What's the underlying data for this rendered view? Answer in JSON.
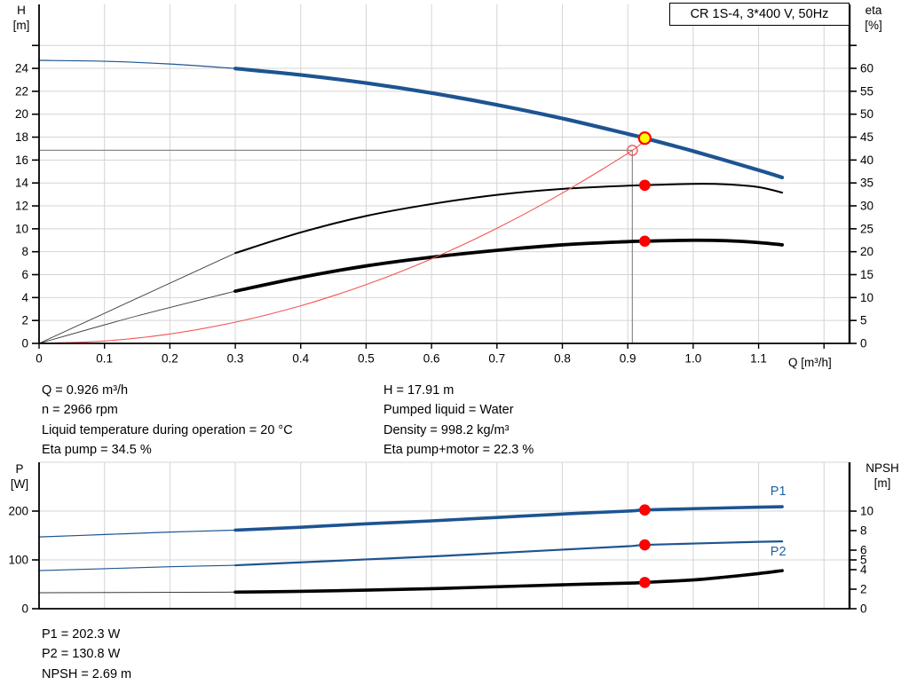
{
  "colors": {
    "blue": "#1d5491",
    "label_blue": "#1f5fa8",
    "black": "#000000",
    "lead_gray": "#3a3a3a",
    "red": "#ff0000",
    "system_red": "#f25555",
    "yellow": "#ffff00",
    "grid": "#d4d4d4",
    "guide": "#8a8a8a",
    "axis": "#000000"
  },
  "info_top": {
    "left": [
      "Q = 0.926 m³/h",
      "n = 2966 rpm",
      "Liquid temperature during operation = 20 °C",
      "Eta pump = 34.5 %"
    ],
    "right": [
      "H = 17.91 m",
      "Pumped liquid = Water",
      "Density = 998.2 kg/m³",
      "Eta pump+motor = 22.3 %"
    ]
  },
  "info_bottom": [
    "P1 = 202.3 W",
    "P2 = 130.8 W",
    "NPSH = 2.69 m"
  ],
  "chart_data": [
    {
      "type": "line",
      "title": "CR 1S-4, 3*400 V, 50Hz",
      "xlabel": "Q [m³/h]",
      "xlim": [
        0,
        1.239
      ],
      "x_ticks": [
        {
          "v": 0,
          "label": "0"
        },
        {
          "v": 0.1,
          "label": "0.1"
        },
        {
          "v": 0.2,
          "label": "0.2"
        },
        {
          "v": 0.3,
          "label": "0.3"
        },
        {
          "v": 0.4,
          "label": "0.4"
        },
        {
          "v": 0.5,
          "label": "0.5"
        },
        {
          "v": 0.6,
          "label": "0.6"
        },
        {
          "v": 0.7,
          "label": "0.7"
        },
        {
          "v": 0.8,
          "label": "0.8"
        },
        {
          "v": 0.9,
          "label": "0.9"
        },
        {
          "v": 1.0,
          "label": "1.0"
        },
        {
          "v": 1.1,
          "label": "1.1"
        },
        {
          "v": 1.2
        }
      ],
      "x_grid": [
        0.1,
        0.2,
        0.3,
        0.4,
        0.5,
        0.6,
        0.7,
        0.8,
        0.9,
        1.0,
        1.1,
        1.2
      ],
      "left_axis": {
        "label_top": "H",
        "label_unit": "[m]",
        "lim": [
          0,
          29.58
        ],
        "ticks": [
          {
            "v": 0,
            "label": "0"
          },
          {
            "v": 2,
            "label": "2"
          },
          {
            "v": 4,
            "label": "4"
          },
          {
            "v": 6,
            "label": "6"
          },
          {
            "v": 8,
            "label": "8"
          },
          {
            "v": 10,
            "label": "10"
          },
          {
            "v": 12,
            "label": "12"
          },
          {
            "v": 14,
            "label": "14"
          },
          {
            "v": 16,
            "label": "16"
          },
          {
            "v": 18,
            "label": "18"
          },
          {
            "v": 20,
            "label": "20"
          },
          {
            "v": 22,
            "label": "22"
          },
          {
            "v": 24,
            "label": "24"
          },
          {
            "v": 26
          }
        ],
        "grid_values": [
          2,
          4,
          6,
          8,
          10,
          12,
          14,
          16,
          18,
          20,
          22,
          24,
          26
        ]
      },
      "right_axis": {
        "label_top": "eta",
        "label_unit": "[%]",
        "lim": [
          0,
          73.94
        ],
        "ticks": [
          {
            "v": 0,
            "label": "0"
          },
          {
            "v": 5,
            "label": "5"
          },
          {
            "v": 10,
            "label": "10"
          },
          {
            "v": 15,
            "label": "15"
          },
          {
            "v": 20,
            "label": "20"
          },
          {
            "v": 25,
            "label": "25"
          },
          {
            "v": 30,
            "label": "30"
          },
          {
            "v": 35,
            "label": "35"
          },
          {
            "v": 40,
            "label": "40"
          },
          {
            "v": 45,
            "label": "45"
          },
          {
            "v": 50,
            "label": "50"
          },
          {
            "v": 55,
            "label": "55"
          },
          {
            "v": 60,
            "label": "60"
          },
          {
            "v": 65
          }
        ]
      },
      "guides": {
        "h": {
          "v": 16.85,
          "q_end": 0.907
        },
        "v": {
          "q": 0.907,
          "v_end": 16.85
        }
      },
      "series": [
        {
          "name": "qh-curve-lead",
          "axis": "left",
          "color": "blue",
          "width": 1.2,
          "points": [
            [
              0,
              24.7
            ],
            [
              0.1,
              24.62
            ],
            [
              0.2,
              24.38
            ],
            [
              0.3,
              23.99
            ]
          ]
        },
        {
          "name": "qh-curve",
          "axis": "left",
          "color": "blue",
          "width": 4.2,
          "points": [
            [
              0.3,
              23.99
            ],
            [
              0.4,
              23.43
            ],
            [
              0.5,
              22.72
            ],
            [
              0.6,
              21.85
            ],
            [
              0.7,
              20.82
            ],
            [
              0.8,
              19.63
            ],
            [
              0.9,
              18.28
            ],
            [
              0.926,
              17.91
            ],
            [
              1.0,
              16.78
            ],
            [
              1.1,
              15.12
            ],
            [
              1.136,
              14.48
            ]
          ]
        },
        {
          "name": "eta-pump-lead",
          "axis": "right",
          "color": "lead_gray",
          "width": 0.9,
          "points": [
            [
              0,
              0
            ],
            [
              0.3,
              19.7
            ]
          ]
        },
        {
          "name": "eta-pump-curve",
          "axis": "right",
          "color": "black",
          "width": 2.0,
          "points": [
            [
              0.3,
              19.7
            ],
            [
              0.4,
              24.2
            ],
            [
              0.5,
              27.8
            ],
            [
              0.6,
              30.4
            ],
            [
              0.7,
              32.4
            ],
            [
              0.8,
              33.7
            ],
            [
              0.9,
              34.4
            ],
            [
              0.926,
              34.5
            ],
            [
              1.0,
              34.8
            ],
            [
              1.05,
              34.7
            ],
            [
              1.1,
              34.1
            ],
            [
              1.136,
              32.9
            ]
          ]
        },
        {
          "name": "eta-pump-motor-lead",
          "axis": "right",
          "color": "lead_gray",
          "width": 0.9,
          "points": [
            [
              0,
              0
            ],
            [
              0.15,
              6.0
            ],
            [
              0.3,
              11.4
            ]
          ]
        },
        {
          "name": "eta-pump-motor-curve",
          "axis": "right",
          "color": "black",
          "width": 3.8,
          "points": [
            [
              0.3,
              11.4
            ],
            [
              0.4,
              14.4
            ],
            [
              0.5,
              16.9
            ],
            [
              0.6,
              18.8
            ],
            [
              0.7,
              20.3
            ],
            [
              0.8,
              21.5
            ],
            [
              0.9,
              22.2
            ],
            [
              0.926,
              22.3
            ],
            [
              1.0,
              22.5
            ],
            [
              1.05,
              22.4
            ],
            [
              1.1,
              22.0
            ],
            [
              1.136,
              21.5
            ]
          ]
        },
        {
          "name": "system-curve",
          "axis": "left",
          "color": "system_red",
          "width": 1.1,
          "points": [
            [
              0,
              0
            ],
            [
              0.1,
              0.21
            ],
            [
              0.2,
              0.82
            ],
            [
              0.3,
              1.85
            ],
            [
              0.4,
              3.28
            ],
            [
              0.5,
              5.13
            ],
            [
              0.6,
              7.38
            ],
            [
              0.7,
              10.05
            ],
            [
              0.8,
              13.12
            ],
            [
              0.907,
              16.85
            ],
            [
              0.926,
              17.91
            ]
          ]
        }
      ],
      "markers": [
        {
          "kind": "ring",
          "axis": "left",
          "q": 0.907,
          "v": 16.85
        },
        {
          "kind": "duty-point",
          "axis": "left",
          "q": 0.926,
          "v": 17.91
        },
        {
          "kind": "dot",
          "axis": "right",
          "q": 0.926,
          "v": 34.5
        },
        {
          "kind": "dot",
          "axis": "right",
          "q": 0.926,
          "v": 22.3
        }
      ],
      "curve_labels": []
    },
    {
      "type": "line",
      "xlim": [
        0,
        1.239
      ],
      "x_ticks": [],
      "x_grid": [
        0.1,
        0.2,
        0.3,
        0.4,
        0.5,
        0.6,
        0.7,
        0.8,
        0.9,
        1.0,
        1.1,
        1.2
      ],
      "left_axis": {
        "label_top": "P",
        "label_unit": "[W]",
        "lim": [
          0,
          300
        ],
        "ticks": [
          {
            "v": 0,
            "label": "0"
          },
          {
            "v": 100,
            "label": "100"
          },
          {
            "v": 200,
            "label": "200"
          }
        ],
        "grid_values": [
          100,
          200,
          300
        ]
      },
      "right_axis": {
        "label_top": "NPSH",
        "label_unit": "[m]",
        "lim": [
          0,
          15
        ],
        "ticks": [
          {
            "v": 0,
            "label": "0"
          },
          {
            "v": 2,
            "label": "2"
          },
          {
            "v": 4,
            "label": "4"
          },
          {
            "v": 5,
            "label": "5"
          },
          {
            "v": 6,
            "label": "6"
          },
          {
            "v": 8,
            "label": "8"
          },
          {
            "v": 10,
            "label": "10"
          }
        ]
      },
      "series": [
        {
          "name": "p1-curve-lead",
          "axis": "left",
          "color": "blue",
          "width": 1.2,
          "points": [
            [
              0,
              147
            ],
            [
              0.1,
              152
            ],
            [
              0.2,
              157
            ],
            [
              0.3,
              161
            ]
          ]
        },
        {
          "name": "p1-curve",
          "axis": "left",
          "color": "blue",
          "width": 3.6,
          "points": [
            [
              0.3,
              161
            ],
            [
              0.4,
              167
            ],
            [
              0.5,
              174
            ],
            [
              0.6,
              180
            ],
            [
              0.7,
              187
            ],
            [
              0.8,
              194
            ],
            [
              0.9,
              200
            ],
            [
              0.926,
              202.3
            ],
            [
              1.0,
              205
            ],
            [
              1.1,
              208
            ],
            [
              1.136,
              209
            ]
          ]
        },
        {
          "name": "p2-curve-lead",
          "axis": "left",
          "color": "blue",
          "width": 1.1,
          "points": [
            [
              0,
              78
            ],
            [
              0.1,
              82
            ],
            [
              0.2,
              86
            ],
            [
              0.3,
              89
            ]
          ]
        },
        {
          "name": "p2-curve",
          "axis": "left",
          "color": "blue",
          "width": 2.2,
          "points": [
            [
              0.3,
              89
            ],
            [
              0.4,
              95
            ],
            [
              0.5,
              101
            ],
            [
              0.6,
              107
            ],
            [
              0.7,
              114
            ],
            [
              0.8,
              121
            ],
            [
              0.9,
              128
            ],
            [
              0.926,
              130.8
            ],
            [
              1.0,
              133.5
            ],
            [
              1.1,
              137
            ],
            [
              1.136,
              138
            ]
          ]
        },
        {
          "name": "npsh-curve-lead",
          "axis": "right",
          "color": "lead_gray",
          "width": 1.0,
          "points": [
            [
              0,
              1.64
            ],
            [
              0.3,
              1.7
            ]
          ]
        },
        {
          "name": "npsh-curve",
          "axis": "right",
          "color": "black",
          "width": 3.6,
          "points": [
            [
              0.3,
              1.7
            ],
            [
              0.4,
              1.78
            ],
            [
              0.5,
              1.9
            ],
            [
              0.6,
              2.05
            ],
            [
              0.7,
              2.25
            ],
            [
              0.8,
              2.45
            ],
            [
              0.9,
              2.62
            ],
            [
              0.926,
              2.69
            ],
            [
              1.0,
              2.95
            ],
            [
              1.05,
              3.25
            ],
            [
              1.1,
              3.6
            ],
            [
              1.136,
              3.9
            ]
          ]
        }
      ],
      "markers": [
        {
          "kind": "dot",
          "axis": "left",
          "q": 0.926,
          "v": 202.3
        },
        {
          "kind": "dot",
          "axis": "left",
          "q": 0.926,
          "v": 130.8
        },
        {
          "kind": "dot",
          "axis": "right",
          "q": 0.926,
          "v": 2.69
        }
      ],
      "curve_labels": [
        {
          "text": "P1",
          "q": 1.13,
          "v": 240,
          "axis": "left",
          "color": "label_blue"
        },
        {
          "text": "P2",
          "q": 1.13,
          "v": 116,
          "axis": "left",
          "color": "label_blue"
        }
      ]
    }
  ]
}
